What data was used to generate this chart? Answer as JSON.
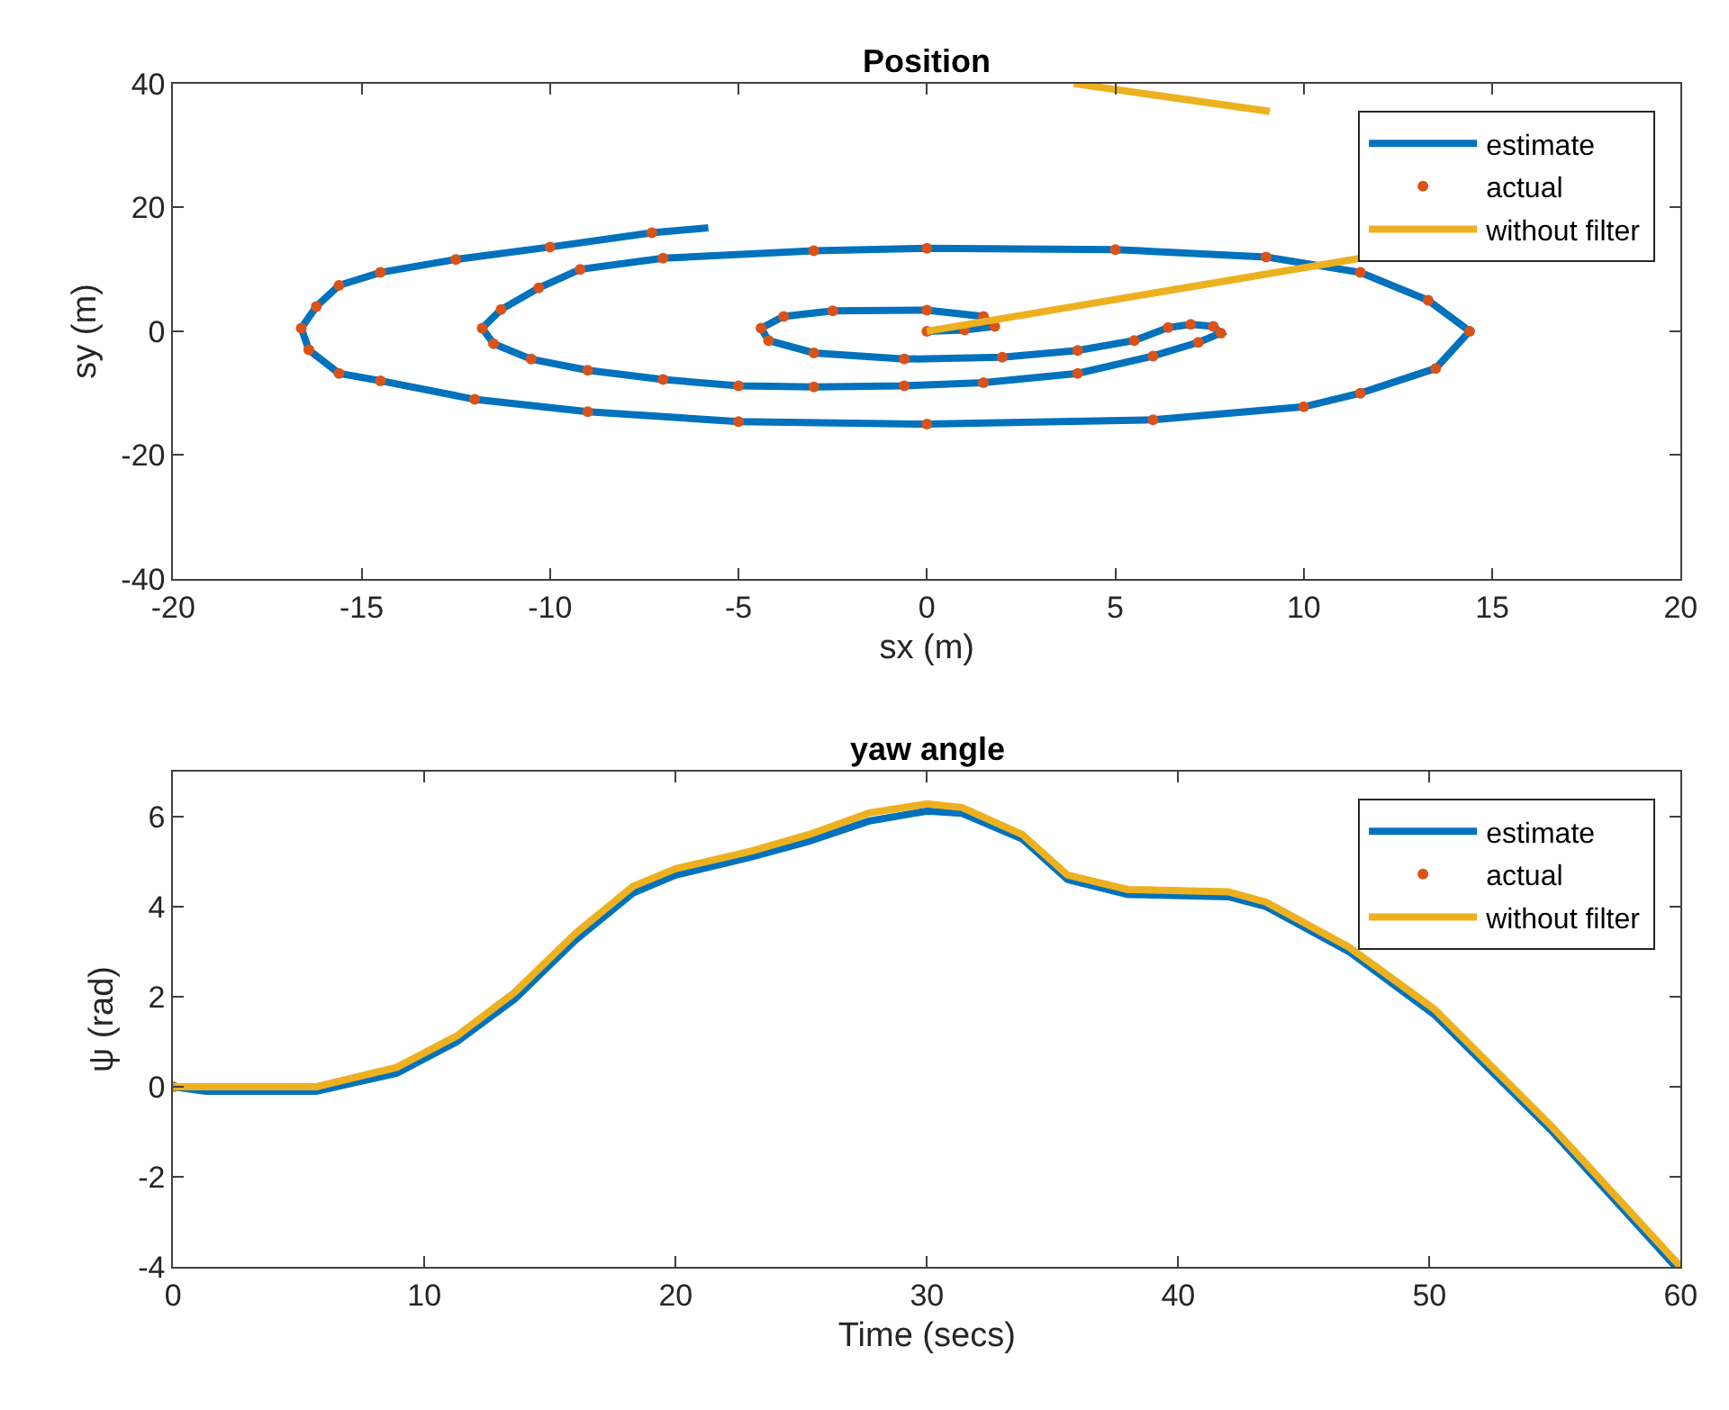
{
  "chart_data": [
    {
      "type": "line",
      "title": "Position",
      "xlabel": "sx (m)",
      "ylabel": "sy (m)",
      "xlim": [
        -20,
        20
      ],
      "ylim": [
        -40,
        40
      ],
      "xticks": [
        -20,
        -15,
        -10,
        -5,
        0,
        5,
        10,
        15,
        20
      ],
      "yticks": [
        -40,
        -20,
        0,
        20,
        40
      ],
      "legend": "top right",
      "series": [
        {
          "name": "estimate",
          "color": "#0072bd",
          "x": [
            0,
            1,
            1.8,
            1.5,
            0,
            -2.5,
            -3.8,
            -4.4,
            -4.2,
            -3,
            -0.6,
            2,
            4,
            5.5,
            6.4,
            7,
            7.6,
            7.8,
            7.2,
            6,
            4,
            1.5,
            -0.6,
            -3,
            -5,
            -7,
            -9,
            -10.5,
            -11.5,
            -11.8,
            -11.3,
            -10.3,
            -9.2,
            -7,
            -3,
            0,
            5,
            9,
            11.5,
            13.3,
            14.4,
            13.5,
            11.5,
            10,
            6,
            0,
            -5,
            -9,
            -12,
            -14.5,
            -15.6,
            -16.4,
            -16.6,
            -16.2,
            -15.6,
            -14.5,
            -12.5,
            -10,
            -7.3,
            -5.8
          ],
          "values": [
            0,
            0.2,
            0.8,
            2.4,
            3.4,
            3.3,
            2.4,
            0.5,
            -1.5,
            -3.5,
            -4.5,
            -4.2,
            -3.1,
            -1.5,
            0.6,
            1.1,
            0.8,
            -0.3,
            -1.8,
            -4,
            -6.8,
            -8.3,
            -8.8,
            -9,
            -8.8,
            -7.8,
            -6.3,
            -4.5,
            -2,
            0.5,
            3.5,
            7,
            10,
            11.8,
            13,
            13.4,
            13.2,
            12,
            9.5,
            5,
            0,
            -6,
            -10,
            -12.2,
            -14.3,
            -15,
            -14.6,
            -13,
            -11,
            -8,
            -6.8,
            -3,
            0.5,
            4,
            7.4,
            9.5,
            11.6,
            13.6,
            15.9,
            16.7
          ]
        },
        {
          "name": "actual",
          "color": "#d95319",
          "type": "scatter",
          "x": [
            0,
            1,
            1.8,
            1.5,
            0,
            -2.5,
            -3.8,
            -4.4,
            -4.2,
            -3,
            -0.6,
            2,
            4,
            5.5,
            6.4,
            7,
            7.6,
            7.8,
            7.2,
            6,
            4,
            1.5,
            -0.6,
            -3,
            -5,
            -7,
            -9,
            -10.5,
            -11.5,
            -11.8,
            -11.3,
            -10.3,
            -9.2,
            -7,
            -3,
            0,
            5,
            9,
            11.5,
            13.3,
            14.4,
            13.5,
            11.5,
            10,
            6,
            0,
            -5,
            -9,
            -12,
            -14.5,
            -15.6,
            -16.4,
            -16.6,
            -16.2,
            -15.6,
            -14.5,
            -12.5,
            -10,
            -7.3
          ],
          "values": [
            0,
            0.2,
            0.8,
            2.4,
            3.4,
            3.3,
            2.4,
            0.5,
            -1.5,
            -3.5,
            -4.5,
            -4.2,
            -3.1,
            -1.5,
            0.6,
            1.1,
            0.8,
            -0.3,
            -1.8,
            -4,
            -6.8,
            -8.3,
            -8.8,
            -9,
            -8.8,
            -7.8,
            -6.3,
            -4.5,
            -2,
            0.5,
            3.5,
            7,
            10,
            11.8,
            13,
            13.4,
            13.2,
            12,
            9.5,
            5,
            0,
            -6,
            -10,
            -12.2,
            -14.3,
            -15,
            -14.6,
            -13,
            -11,
            -8,
            -6.8,
            -3,
            0.5,
            4,
            7.4,
            9.5,
            11.6,
            13.6,
            15.9
          ]
        },
        {
          "name": "without filter",
          "color": "#edb120",
          "x": [
            0,
            11.6,
            null,
            3.9,
            9.1
          ],
          "values": [
            0,
            11.9,
            null,
            40,
            35.5
          ]
        }
      ]
    },
    {
      "type": "line",
      "title": "yaw angle",
      "xlabel": "Time (secs)",
      "ylabel": "ψ (rad)",
      "xlim": [
        0,
        60
      ],
      "ylim": [
        -4,
        7
      ],
      "xticks": [
        0,
        10,
        20,
        30,
        40,
        50,
        60
      ],
      "yticks": [
        -4,
        -2,
        0,
        2,
        4,
        6
      ],
      "legend": "top right",
      "series": [
        {
          "name": "estimate",
          "color": "#0072bd",
          "x": [
            0,
            1.3,
            5.7,
            8.9,
            11.3,
            13.6,
            16,
            18.3,
            20,
            23,
            25.3,
            27.7,
            30,
            31.4,
            33.8,
            35.6,
            38,
            42,
            43.5,
            46.8,
            50.2,
            54.9,
            59.8
          ],
          "values": [
            0,
            -0.1,
            -0.1,
            0.3,
            1.0,
            1.95,
            3.25,
            4.3,
            4.7,
            5.1,
            5.45,
            5.9,
            6.12,
            6.07,
            5.5,
            4.6,
            4.27,
            4.22,
            4.0,
            3.0,
            1.6,
            -1.0,
            -4.0
          ]
        },
        {
          "name": "actual",
          "color": "#d95319",
          "type": "scatter",
          "x": [
            0
          ],
          "values": [
            0
          ]
        },
        {
          "name": "without filter",
          "color": "#edb120",
          "x": [
            0,
            5.7,
            8.9,
            11.3,
            13.6,
            16,
            18.3,
            20,
            23,
            25.3,
            27.7,
            30,
            31.4,
            33.8,
            35.6,
            38,
            42,
            43.5,
            46.8,
            50.2,
            54.9,
            60
          ],
          "values": [
            0,
            0,
            0.43,
            1.13,
            2.1,
            3.4,
            4.45,
            4.84,
            5.23,
            5.6,
            6.08,
            6.28,
            6.2,
            5.6,
            4.7,
            4.38,
            4.33,
            4.1,
            3.1,
            1.72,
            -0.9,
            -4
          ]
        }
      ]
    }
  ]
}
